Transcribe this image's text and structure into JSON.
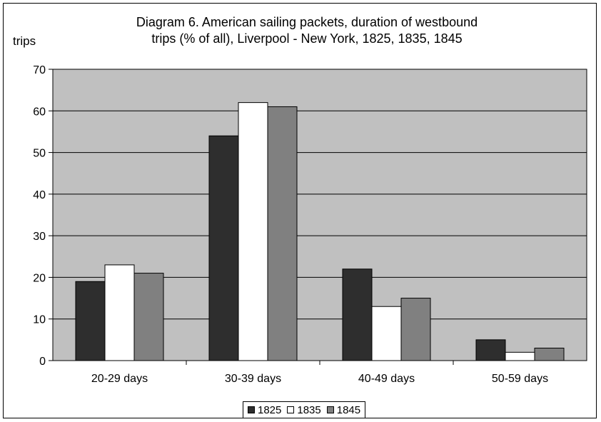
{
  "chart_data": {
    "type": "bar",
    "title_lines": [
      "Diagram 6. American sailing packets, duration of westbound",
      "trips (% of all), Liverpool - New York, 1825, 1835, 1845"
    ],
    "ylabel": "trips",
    "xlabel": "",
    "ylim": [
      0,
      70
    ],
    "yticks": [
      0,
      10,
      20,
      30,
      40,
      50,
      60,
      70
    ],
    "grid": true,
    "legend_position": "bottom-center",
    "categories": [
      "20-29 days",
      "30-39 days",
      "40-49 days",
      "50-59 days"
    ],
    "series": [
      {
        "name": "1825",
        "color": "#2e2e2e",
        "values": [
          19,
          54,
          22,
          5
        ]
      },
      {
        "name": "1835",
        "color": "#ffffff",
        "values": [
          23,
          62,
          13,
          2
        ]
      },
      {
        "name": "1845",
        "color": "#808080",
        "values": [
          21,
          61,
          15,
          3
        ]
      }
    ],
    "plot_background": "#c0c0c0"
  }
}
